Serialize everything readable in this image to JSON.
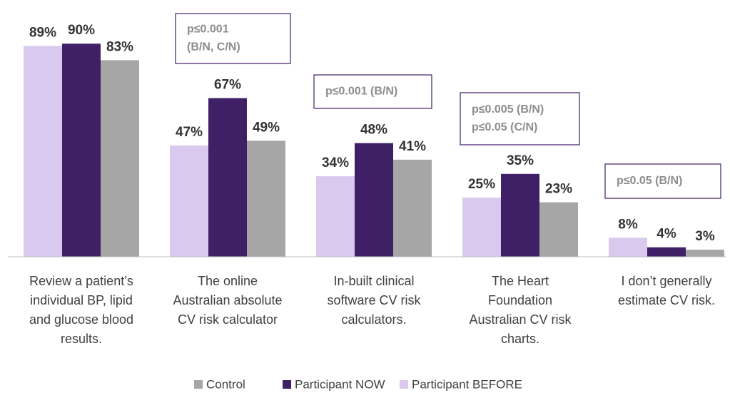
{
  "chart_data": {
    "type": "bar",
    "categories": [
      [
        "Review a patient’s",
        "individual BP, lipid",
        "and glucose blood",
        "results."
      ],
      [
        "The online",
        "Australian absolute",
        "CV risk calculator"
      ],
      [
        "In-built clinical",
        "software CV risk",
        "calculators."
      ],
      [
        "The Heart",
        "Foundation",
        "Australian CV risk",
        "charts."
      ],
      [
        "I don’t generally",
        "estimate CV risk."
      ]
    ],
    "series": [
      {
        "name": "Participant BEFORE",
        "color": "#d9c9ef",
        "values": [
          89,
          47,
          34,
          25,
          8
        ],
        "value_labels": [
          "89%",
          "47%",
          "34%",
          "25%",
          "8%"
        ]
      },
      {
        "name": "Participant NOW",
        "color": "#3f1f66",
        "values": [
          90,
          67,
          48,
          35,
          4
        ],
        "value_labels": [
          "90%",
          "67%",
          "48%",
          "35%",
          "4%"
        ]
      },
      {
        "name": "Control",
        "color": "#a6a6a6",
        "values": [
          83,
          49,
          41,
          23,
          3
        ],
        "value_labels": [
          "83%",
          "49%",
          "41%",
          "23%",
          "3%"
        ]
      }
    ],
    "annotations": [
      null,
      [
        "p≤0.001",
        "(B/N, C/N)"
      ],
      [
        "p≤0.001 (B/N)"
      ],
      [
        "p≤0.005 (B/N)",
        "p≤0.05 (C/N)"
      ],
      [
        "p≤0.05 (B/N)"
      ]
    ],
    "ylim": [
      0,
      100
    ]
  }
}
